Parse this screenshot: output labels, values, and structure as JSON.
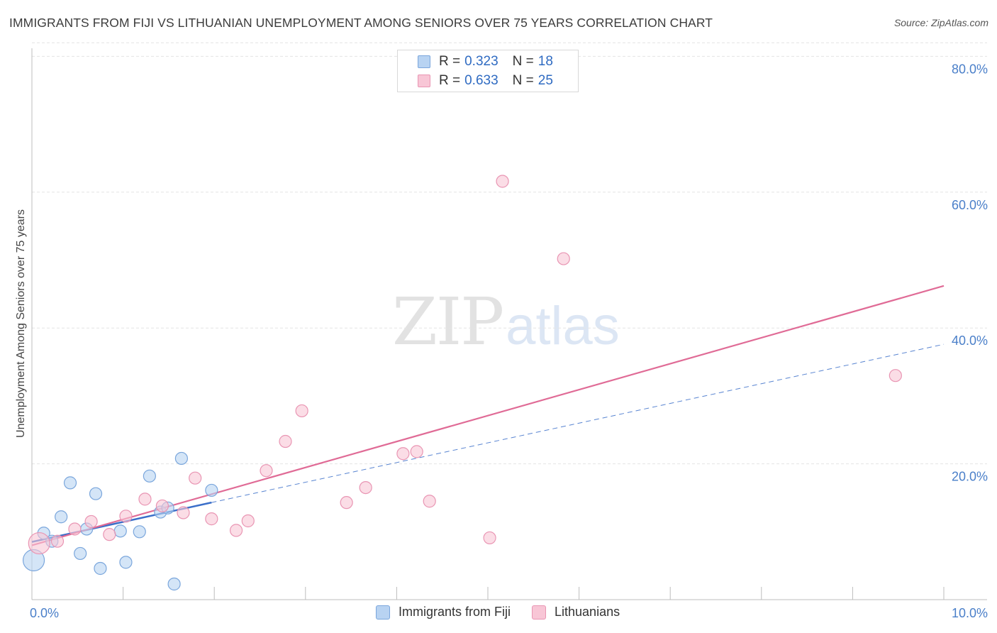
{
  "title": "IMMIGRANTS FROM FIJI VS LITHUANIAN UNEMPLOYMENT AMONG SENIORS OVER 75 YEARS CORRELATION CHART",
  "source": "Source: ZipAtlas.com",
  "watermark": {
    "zip": "ZIP",
    "atlas": "atlas"
  },
  "legend_top": [
    {
      "r_label": "R =",
      "r_value": "0.323",
      "n_label": "N =",
      "n_value": "18"
    },
    {
      "r_label": "R =",
      "r_value": "0.633",
      "n_label": "N =",
      "n_value": "25"
    }
  ],
  "legend_bottom": [
    {
      "label": "Immigrants from Fiji"
    },
    {
      "label": "Lithuanians"
    }
  ],
  "colors": {
    "fiji_fill": "#b8d3f2",
    "fiji_stroke": "#7aa6dc",
    "fiji_line": "#3b6fc9",
    "lith_fill": "#f8c6d6",
    "lith_stroke": "#e995b3",
    "lith_line": "#e06b96",
    "grid": "#e4e4e4",
    "tick_text": "#4a7fc9"
  },
  "chart_data": {
    "type": "scatter",
    "title": "IMMIGRANTS FROM FIJI VS LITHUANIAN UNEMPLOYMENT AMONG SENIORS OVER 75 YEARS CORRELATION CHART",
    "xlabel": "",
    "ylabel": "Unemployment Among Seniors over 75 years",
    "xlim": [
      0,
      10
    ],
    "ylim": [
      0,
      82
    ],
    "x_tick_labels": [
      {
        "value": 0,
        "label": "0.0%"
      },
      {
        "value": 10,
        "label": "10.0%"
      }
    ],
    "y_tick_labels": [
      {
        "value": 20,
        "label": "20.0%"
      },
      {
        "value": 40,
        "label": "40.0%"
      },
      {
        "value": 60,
        "label": "60.0%"
      },
      {
        "value": 80,
        "label": "80.0%"
      }
    ],
    "series": [
      {
        "name": "Immigrants from Fiji",
        "R": 0.323,
        "N": 18,
        "points": [
          {
            "x": 0.02,
            "y": 5.8,
            "big": true
          },
          {
            "x": 0.13,
            "y": 9.8
          },
          {
            "x": 0.22,
            "y": 8.6
          },
          {
            "x": 0.32,
            "y": 12.2
          },
          {
            "x": 0.42,
            "y": 17.2
          },
          {
            "x": 0.53,
            "y": 6.8
          },
          {
            "x": 0.6,
            "y": 10.4
          },
          {
            "x": 0.7,
            "y": 15.6
          },
          {
            "x": 0.75,
            "y": 4.6
          },
          {
            "x": 0.97,
            "y": 10.1
          },
          {
            "x": 1.03,
            "y": 5.5
          },
          {
            "x": 1.18,
            "y": 10.0
          },
          {
            "x": 1.29,
            "y": 18.2
          },
          {
            "x": 1.41,
            "y": 12.9
          },
          {
            "x": 1.49,
            "y": 13.5
          },
          {
            "x": 1.56,
            "y": 2.3
          },
          {
            "x": 1.64,
            "y": 20.8
          },
          {
            "x": 1.97,
            "y": 16.1
          }
        ],
        "trend": {
          "x1": 0.0,
          "y1": 8.5,
          "x2": 1.97,
          "y2": 14.3,
          "ext_x2": 10.0,
          "ext_y2": 37.6
        }
      },
      {
        "name": "Lithuanians",
        "R": 0.633,
        "N": 25,
        "points": [
          {
            "x": 0.08,
            "y": 8.3,
            "big": true
          },
          {
            "x": 0.28,
            "y": 8.6
          },
          {
            "x": 0.47,
            "y": 10.4
          },
          {
            "x": 0.65,
            "y": 11.5
          },
          {
            "x": 0.85,
            "y": 9.6
          },
          {
            "x": 1.03,
            "y": 12.3
          },
          {
            "x": 1.24,
            "y": 14.8
          },
          {
            "x": 1.43,
            "y": 13.8
          },
          {
            "x": 1.66,
            "y": 12.8
          },
          {
            "x": 1.79,
            "y": 17.9
          },
          {
            "x": 1.97,
            "y": 11.9
          },
          {
            "x": 2.24,
            "y": 10.2
          },
          {
            "x": 2.37,
            "y": 11.6
          },
          {
            "x": 2.57,
            "y": 19.0
          },
          {
            "x": 2.78,
            "y": 23.3
          },
          {
            "x": 2.96,
            "y": 27.8
          },
          {
            "x": 3.45,
            "y": 14.3
          },
          {
            "x": 3.66,
            "y": 16.5
          },
          {
            "x": 4.07,
            "y": 21.5
          },
          {
            "x": 4.22,
            "y": 21.8
          },
          {
            "x": 4.36,
            "y": 14.5
          },
          {
            "x": 5.02,
            "y": 9.1
          },
          {
            "x": 5.16,
            "y": 61.6
          },
          {
            "x": 5.83,
            "y": 50.2
          },
          {
            "x": 9.47,
            "y": 33.0
          }
        ],
        "trend": {
          "x1": 0.0,
          "y1": 8.0,
          "x2": 10.0,
          "y2": 46.2
        }
      }
    ]
  }
}
